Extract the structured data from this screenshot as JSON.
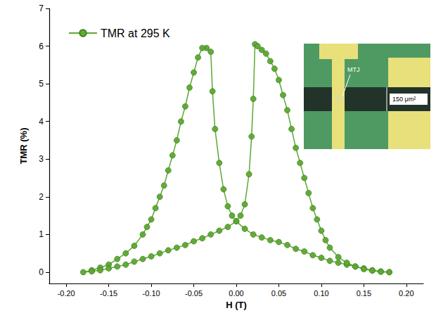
{
  "chart_data": {
    "type": "line",
    "x_label": "H (T)",
    "y_label": "TMR (%)",
    "annotations": [
      "MTJ",
      "150 μm²"
    ],
    "legend": "upper left",
    "grid": false,
    "xlim": [
      -0.22,
      0.22
    ],
    "ylim": [
      -0.3,
      7
    ],
    "xticks": [
      {
        "value": -0.2,
        "label": "-0.20"
      },
      {
        "value": -0.15,
        "label": "-0.15"
      },
      {
        "value": -0.1,
        "label": "-0.10"
      },
      {
        "value": -0.05,
        "label": "-0.05"
      },
      {
        "value": 0,
        "label": "0.00"
      },
      {
        "value": 0.05,
        "label": "0.05"
      },
      {
        "value": 0.1,
        "label": "0.10"
      },
      {
        "value": 0.15,
        "label": "0.15"
      },
      {
        "value": 0.2,
        "label": "0.20"
      }
    ],
    "yticks": [
      0,
      1,
      2,
      3,
      4,
      5,
      6,
      7
    ],
    "x": [
      0.18,
      0.17,
      0.16,
      0.15,
      0.14,
      0.13,
      0.12,
      0.11,
      0.1,
      0.09,
      0.08,
      0.07,
      0.06,
      0.05,
      0.04,
      0.03,
      0.02,
      0.01,
      0.0,
      -0.005,
      -0.01,
      -0.015,
      -0.02,
      -0.025,
      -0.028,
      -0.03,
      -0.035,
      -0.04,
      -0.045,
      -0.05,
      -0.055,
      -0.06,
      -0.065,
      -0.07,
      -0.075,
      -0.08,
      -0.085,
      -0.09,
      -0.095,
      -0.1,
      -0.105,
      -0.11,
      -0.12,
      -0.13,
      -0.14,
      -0.15,
      -0.16,
      -0.17,
      -0.18,
      -0.17,
      -0.16,
      -0.15,
      -0.14,
      -0.13,
      -0.12,
      -0.11,
      -0.1,
      -0.09,
      -0.08,
      -0.07,
      -0.06,
      -0.05,
      -0.04,
      -0.03,
      -0.02,
      -0.01,
      0.0,
      0.005,
      0.01,
      0.015,
      0.018,
      0.02,
      0.022,
      0.025,
      0.03,
      0.035,
      0.04,
      0.045,
      0.05,
      0.055,
      0.06,
      0.065,
      0.07,
      0.075,
      0.08,
      0.085,
      0.09,
      0.095,
      0.1,
      0.105,
      0.11,
      0.12,
      0.13,
      0.14,
      0.15,
      0.16,
      0.17,
      0.18
    ],
    "series": [
      {
        "name": "TMR at 295 K",
        "color": "#5da832",
        "marker": "circle",
        "line_style": "solid",
        "values": [
          0.0,
          0.02,
          0.05,
          0.1,
          0.15,
          0.2,
          0.25,
          0.3,
          0.38,
          0.45,
          0.55,
          0.62,
          0.72,
          0.8,
          0.85,
          0.92,
          1.0,
          1.15,
          1.35,
          1.5,
          1.75,
          2.2,
          2.9,
          3.8,
          4.8,
          5.85,
          5.95,
          5.95,
          5.7,
          5.3,
          4.9,
          4.4,
          4.0,
          3.5,
          3.1,
          2.7,
          2.3,
          2.0,
          1.7,
          1.4,
          1.2,
          1.0,
          0.7,
          0.5,
          0.35,
          0.2,
          0.12,
          0.05,
          0.0,
          0.02,
          0.05,
          0.1,
          0.15,
          0.2,
          0.28,
          0.35,
          0.42,
          0.5,
          0.58,
          0.65,
          0.72,
          0.82,
          0.9,
          1.0,
          1.1,
          1.2,
          1.35,
          1.5,
          1.8,
          2.6,
          3.6,
          4.6,
          6.05,
          6.0,
          5.9,
          5.8,
          5.6,
          5.4,
          5.1,
          4.7,
          4.3,
          3.8,
          3.3,
          2.9,
          2.5,
          2.1,
          1.7,
          1.4,
          1.1,
          0.85,
          0.65,
          0.4,
          0.25,
          0.15,
          0.08,
          0.04,
          0.01,
          0.0
        ]
      }
    ]
  }
}
